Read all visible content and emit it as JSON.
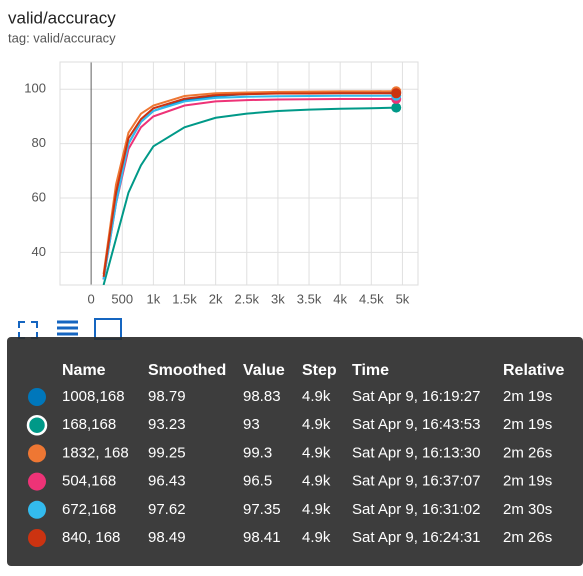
{
  "header": {
    "title": "valid/accuracy",
    "tag": "tag: valid/accuracy"
  },
  "chart_data": {
    "type": "line",
    "x": [
      200,
      400,
      600,
      800,
      1000,
      1500,
      2000,
      2500,
      3000,
      3500,
      4000,
      4500,
      4900
    ],
    "xlim": [
      -500,
      5250
    ],
    "ylim": [
      28,
      110
    ],
    "xticks": [
      0,
      500,
      {
        "value": 1000,
        "label": "1k"
      },
      {
        "value": 1500,
        "label": "1.5k"
      },
      {
        "value": 2000,
        "label": "2k"
      },
      {
        "value": 2500,
        "label": "2.5k"
      },
      {
        "value": 3000,
        "label": "3k"
      },
      {
        "value": 3500,
        "label": "3.5k"
      },
      {
        "value": 4000,
        "label": "4k"
      },
      {
        "value": 4500,
        "label": "4.5k"
      },
      {
        "value": 5000,
        "label": "5k"
      }
    ],
    "yticks": [
      40,
      60,
      80,
      100
    ],
    "grid": true,
    "series": [
      {
        "name": "1008,168",
        "color": "#0077bb",
        "values": [
          30,
          60,
          80,
          88,
          92,
          96,
          97.5,
          98.2,
          98.5,
          98.6,
          98.7,
          98.8,
          98.79
        ]
      },
      {
        "name": "168,168",
        "color": "#009988",
        "values": [
          28,
          45,
          62,
          72,
          79,
          86,
          89.5,
          91,
          92,
          92.5,
          92.8,
          93,
          93.23
        ]
      },
      {
        "name": "1832, 168",
        "color": "#ee7733",
        "values": [
          32,
          65,
          84,
          91,
          94,
          97.5,
          98.5,
          98.8,
          99,
          99.1,
          99.2,
          99.2,
          99.25
        ]
      },
      {
        "name": "504,168",
        "color": "#ee3377",
        "values": [
          30,
          58,
          78,
          86,
          90,
          94,
          95.5,
          96,
          96.2,
          96.3,
          96.4,
          96.4,
          96.43
        ]
      },
      {
        "name": "672,168",
        "color": "#33bbee",
        "values": [
          30,
          58,
          80,
          88,
          92,
          95.5,
          96.8,
          97.2,
          97.4,
          97.5,
          97.6,
          97.6,
          97.62
        ]
      },
      {
        "name": "840, 168",
        "color": "#cc3311",
        "values": [
          31,
          62,
          82,
          89,
          93,
          96.5,
          97.8,
          98.2,
          98.4,
          98.4,
          98.5,
          98.5,
          98.49
        ]
      }
    ]
  },
  "tooltip": {
    "columns": [
      "Name",
      "Smoothed",
      "Value",
      "Step",
      "Time",
      "Relative"
    ],
    "rows": [
      [
        "1008,168",
        98.79,
        98.83,
        "4.9k",
        "Sat Apr 9, 16:19:27",
        "2m 19s"
      ],
      [
        "168,168",
        93.23,
        93,
        "4.9k",
        "Sat Apr 9, 16:43:53",
        "2m 19s"
      ],
      [
        "1832, 168",
        99.25,
        99.3,
        "4.9k",
        "Sat Apr 9, 16:13:30",
        "2m 26s"
      ],
      [
        "504,168",
        96.43,
        96.5,
        "4.9k",
        "Sat Apr 9, 16:37:07",
        "2m 19s"
      ],
      [
        "672,168",
        97.62,
        97.35,
        "4.9k",
        "Sat Apr 9, 16:31:02",
        "2m 30s"
      ],
      [
        "840, 168",
        98.49,
        98.41,
        "4.9k",
        "Sat Apr 9, 16:24:31",
        "2m 26s"
      ]
    ]
  }
}
